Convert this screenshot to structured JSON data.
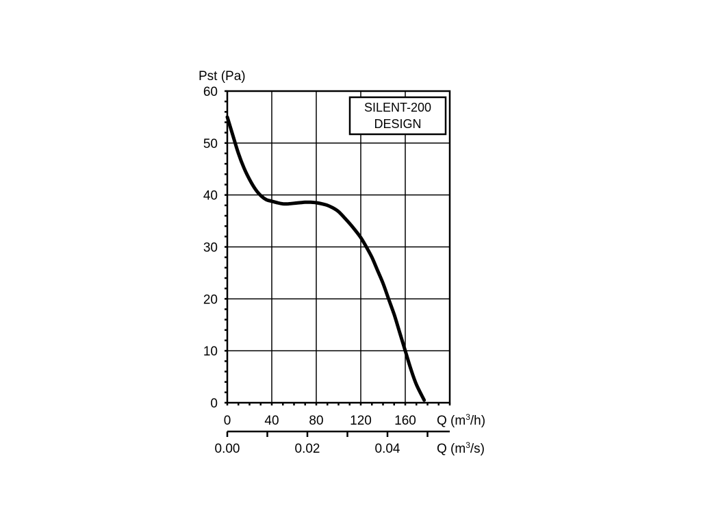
{
  "chart_data": {
    "type": "line",
    "ylabel": "Pst (Pa)",
    "xlabel": "Q (m³/h)",
    "xlabel_parts": [
      "Q (m",
      "3",
      "/h)"
    ],
    "x2label": "Q (m³/s)",
    "x2label_parts": [
      "Q (m",
      "3",
      "/s)"
    ],
    "xlim": [
      0,
      200
    ],
    "ylim": [
      0,
      60
    ],
    "x_ticks": [
      0,
      40,
      80,
      120,
      160
    ],
    "x_tick_labels": [
      "0",
      "40",
      "80",
      "120",
      "160"
    ],
    "y_ticks": [
      0,
      10,
      20,
      30,
      40,
      50,
      60
    ],
    "y_tick_labels": [
      "0",
      "10",
      "20",
      "30",
      "40",
      "50",
      "60"
    ],
    "x2_ticks": [
      0.0,
      0.02,
      0.04
    ],
    "x2_tick_labels": [
      "0.00",
      "0.02",
      "0.04"
    ],
    "grid": true,
    "legend_box": [
      "SILENT-200",
      "DESIGN"
    ],
    "legend_position": "top-right",
    "line_color": "#000000",
    "series": [
      {
        "x": [
          0,
          5,
          10,
          15,
          20,
          25,
          30,
          35,
          40,
          45,
          50,
          55,
          60,
          65,
          70,
          75,
          80,
          85,
          90,
          95,
          100,
          105,
          110,
          115,
          120,
          125,
          130,
          135,
          140,
          145,
          150,
          155,
          160,
          165,
          170,
          177
        ],
        "y": [
          55,
          51.5,
          48,
          45.2,
          43,
          41.2,
          39.9,
          39.1,
          38.8,
          38.5,
          38.3,
          38.3,
          38.4,
          38.5,
          38.6,
          38.6,
          38.5,
          38.3,
          38,
          37.5,
          36.8,
          35.7,
          34.5,
          33.2,
          31.8,
          30,
          28,
          25.5,
          23,
          20,
          17,
          13.5,
          10,
          6.5,
          3.5,
          0.5
        ]
      }
    ]
  }
}
